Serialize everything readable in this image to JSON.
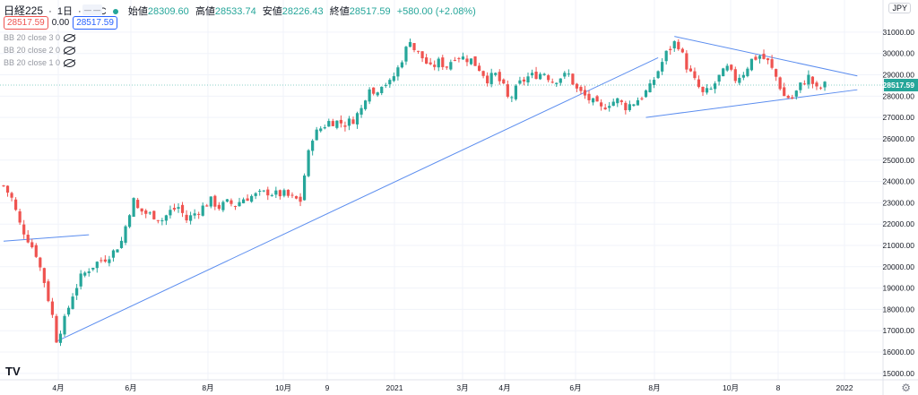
{
  "legend": {
    "symbol": "日経225",
    "sep": "·",
    "interval": "1日",
    "exchange": "TVC",
    "open_label": "始値",
    "open": "28309.60",
    "high_label": "高値",
    "high": "28533.74",
    "low_label": "安値",
    "low": "28226.43",
    "close_label": "終値",
    "close": "28517.59",
    "change": "+580.00 (+2.08%)"
  },
  "prices": {
    "bid": "28517.59",
    "spread": "0.00",
    "ask": "28517.59",
    "minibar": "— —"
  },
  "indicators": [
    "BB 20 close 3 0",
    "BB 20 close 2 0",
    "BB 20 close 1 0"
  ],
  "currency": "JPY",
  "logo": "TV",
  "colors": {
    "up": "#26a69a",
    "down": "#ef5350",
    "trend": "#5b8def",
    "grid": "#f0f3fa",
    "last_price": "#26a69a"
  },
  "icons": {
    "visibility": "eye-off-icon",
    "settings": "gear-icon"
  },
  "chart_data": {
    "type": "candlestick",
    "x_ticks": [
      "4月",
      "6月",
      "8月",
      "10月",
      "9",
      "2021",
      "3月",
      "4月",
      "6月",
      "8月",
      "10月",
      "8",
      "2022"
    ],
    "y_ticks": [
      15000,
      16000,
      17000,
      18000,
      19000,
      20000,
      21000,
      22000,
      23000,
      24000,
      25000,
      26000,
      27000,
      28000,
      29000,
      30000,
      31000
    ],
    "ylim": [
      14700,
      31500
    ],
    "last_price": 28517.59,
    "last_price_label": "28517.59",
    "series_close": [
      [
        0,
        23800
      ],
      [
        2,
        23200
      ],
      [
        4,
        22000
      ],
      [
        6,
        21300
      ],
      [
        8,
        20600
      ],
      [
        10,
        19300
      ],
      [
        12,
        17700
      ],
      [
        13,
        16600
      ],
      [
        15,
        17500
      ],
      [
        17,
        18700
      ],
      [
        19,
        19500
      ],
      [
        21,
        19900
      ],
      [
        23,
        20200
      ],
      [
        25,
        20400
      ],
      [
        27,
        20700
      ],
      [
        29,
        21200
      ],
      [
        30,
        21900
      ],
      [
        31,
        22600
      ],
      [
        32,
        23100
      ],
      [
        33,
        22700
      ],
      [
        35,
        22500
      ],
      [
        37,
        22400
      ],
      [
        39,
        22200
      ],
      [
        41,
        22600
      ],
      [
        43,
        22800
      ],
      [
        45,
        22200
      ],
      [
        47,
        22500
      ],
      [
        49,
        22800
      ],
      [
        51,
        23100
      ],
      [
        53,
        22800
      ],
      [
        55,
        23000
      ],
      [
        57,
        22900
      ],
      [
        59,
        23200
      ],
      [
        61,
        23300
      ],
      [
        63,
        23400
      ],
      [
        65,
        23500
      ],
      [
        67,
        23400
      ],
      [
        69,
        23400
      ],
      [
        71,
        23200
      ],
      [
        73,
        23100
      ],
      [
        74,
        24300
      ],
      [
        75,
        25300
      ],
      [
        76,
        26100
      ],
      [
        78,
        26500
      ],
      [
        80,
        26800
      ],
      [
        82,
        26800
      ],
      [
        84,
        26700
      ],
      [
        86,
        26900
      ],
      [
        88,
        27400
      ],
      [
        89,
        28000
      ],
      [
        90,
        28500
      ],
      [
        91,
        28100
      ],
      [
        93,
        28600
      ],
      [
        95,
        28600
      ],
      [
        97,
        29300
      ],
      [
        99,
        30200
      ],
      [
        100,
        30700
      ],
      [
        101,
        30200
      ],
      [
        103,
        29800
      ],
      [
        105,
        29300
      ],
      [
        107,
        29600
      ],
      [
        109,
        29400
      ],
      [
        111,
        29900
      ],
      [
        113,
        29800
      ],
      [
        115,
        29700
      ],
      [
        117,
        29300
      ],
      [
        119,
        28800
      ],
      [
        121,
        29000
      ],
      [
        123,
        28400
      ],
      [
        124,
        27900
      ],
      [
        125,
        28000
      ],
      [
        127,
        28600
      ],
      [
        129,
        28900
      ],
      [
        131,
        29000
      ],
      [
        133,
        29100
      ],
      [
        135,
        28700
      ],
      [
        137,
        28900
      ],
      [
        139,
        29000
      ],
      [
        141,
        28300
      ],
      [
        143,
        28000
      ],
      [
        145,
        27700
      ],
      [
        147,
        27400
      ],
      [
        149,
        27700
      ],
      [
        151,
        27800
      ],
      [
        153,
        27500
      ],
      [
        155,
        27700
      ],
      [
        157,
        28000
      ],
      [
        159,
        28400
      ],
      [
        161,
        29200
      ],
      [
        163,
        30000
      ],
      [
        165,
        30500
      ],
      [
        166,
        30400
      ],
      [
        168,
        29400
      ],
      [
        170,
        28700
      ],
      [
        172,
        28100
      ],
      [
        174,
        28300
      ],
      [
        176,
        28900
      ],
      [
        178,
        29300
      ],
      [
        180,
        28800
      ],
      [
        182,
        29100
      ],
      [
        184,
        29700
      ],
      [
        186,
        29900
      ],
      [
        188,
        29600
      ],
      [
        190,
        28900
      ],
      [
        192,
        28000
      ],
      [
        194,
        27900
      ],
      [
        196,
        28500
      ],
      [
        198,
        28900
      ],
      [
        200,
        28300
      ],
      [
        202,
        28517.59
      ]
    ],
    "trendlines": [
      {
        "name": "lower-support",
        "x0": 13,
        "y0": 16500,
        "x1": 161,
        "y1": 29800
      },
      {
        "name": "early-line",
        "x0": 0,
        "y0": 21200,
        "x1": 21,
        "y1": 21500
      },
      {
        "name": "triangle-upper",
        "x0": 165,
        "y0": 30800,
        "x1": 210,
        "y1": 28950
      },
      {
        "name": "triangle-lower",
        "x0": 158,
        "y0": 27000,
        "x1": 210,
        "y1": 28300
      }
    ],
    "grid": true,
    "legend_position": "top-left"
  }
}
